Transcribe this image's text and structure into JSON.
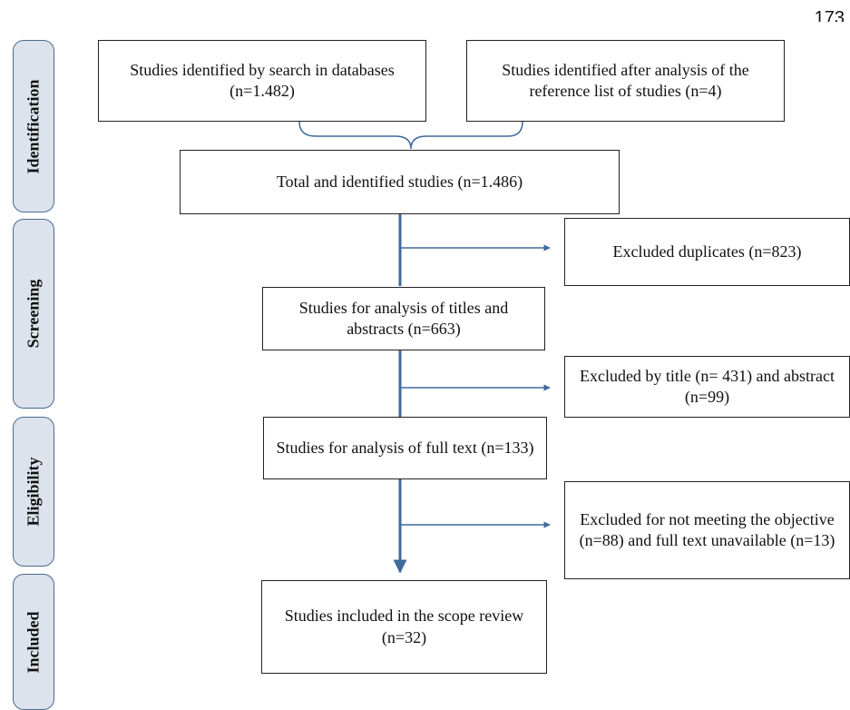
{
  "page_number": "173",
  "colors": {
    "arrow": "#3f6a9b",
    "phase_fill": "#dde3ec",
    "phase_border": "#4a6b8f"
  },
  "phases": {
    "identification": "Identification",
    "screening": "Screening",
    "eligibility": "Eligibility",
    "included": "Included"
  },
  "boxes": {
    "db_search": "Studies identified by search in databases (n=1.482)",
    "reference_list": "Studies identified after analysis of the reference list of studies (n=4)",
    "total": "Total and identified studies (n=1.486)",
    "excluded_duplicates": "Excluded duplicates (n=823)",
    "titles_abstracts": "Studies for analysis of titles and abstracts (n=663)",
    "excluded_title_abstract": "Excluded by title (n= 431) and abstract (n=99)",
    "full_text": "Studies for analysis of full  text (n=133)",
    "excluded_objective": "Excluded for not meeting the objective (n=88) and full text unavailable (n=13)",
    "included": "Studies included in the scope review (n=32)"
  }
}
